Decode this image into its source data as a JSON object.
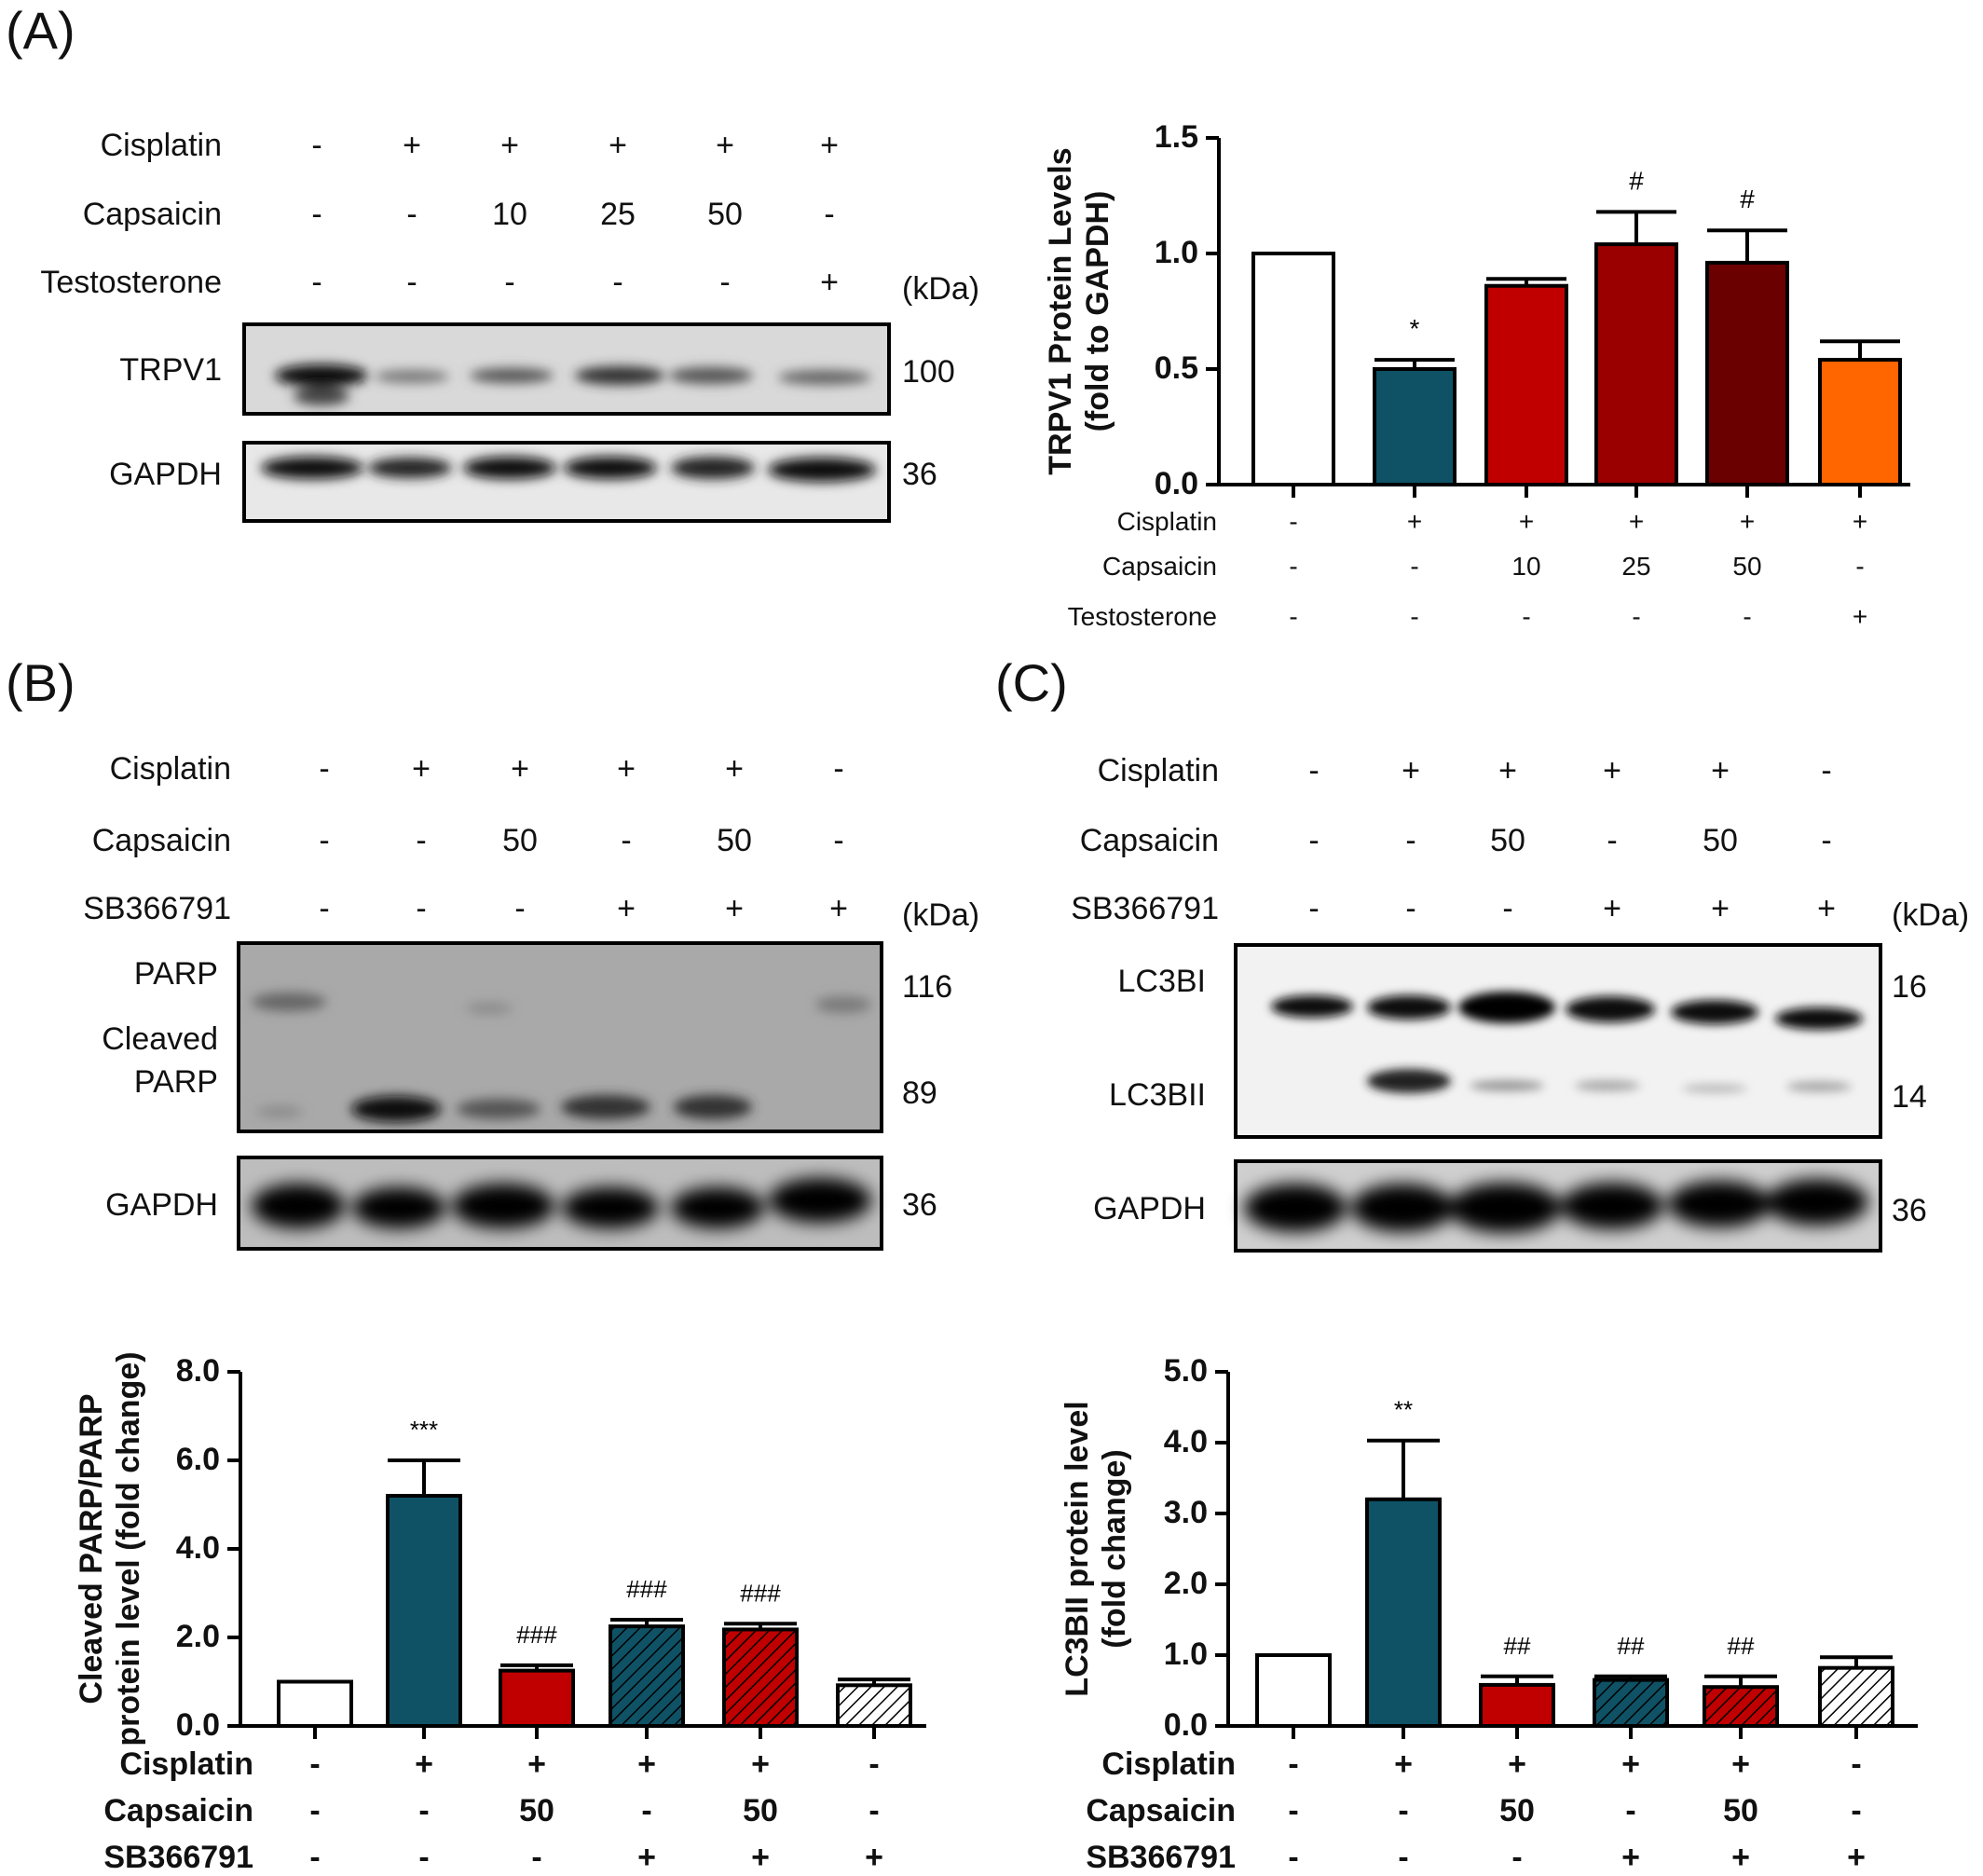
{
  "panels": {
    "a": {
      "label": "(A)",
      "row_names": [
        "Cisplatin",
        "Capsaicin",
        "Testosterone"
      ],
      "rows": [
        [
          "-",
          "+",
          "+",
          "+",
          "+",
          "+"
        ],
        [
          "-",
          "-",
          "10",
          "25",
          "50",
          "-"
        ],
        [
          "-",
          "-",
          "-",
          "-",
          "-",
          "+"
        ]
      ],
      "kda": "(kDa)",
      "blots": [
        {
          "name": "TRPV1",
          "kda": "100"
        },
        {
          "name": "GAPDH",
          "kda": "36"
        }
      ]
    },
    "b": {
      "label": "(B)",
      "row_names": [
        "Cisplatin",
        "Capsaicin",
        "SB366791"
      ],
      "rows": [
        [
          "-",
          "+",
          "+",
          "+",
          "+",
          "-"
        ],
        [
          "-",
          "-",
          "50",
          "-",
          "50",
          "-"
        ],
        [
          "-",
          "-",
          "-",
          "+",
          "+",
          "+"
        ]
      ],
      "kda": "(kDa)",
      "blot_labels": {
        "parp": "PARP",
        "cleaved": "Cleaved",
        "cleaved2": "PARP",
        "gapdh": "GAPDH"
      },
      "kda_values": {
        "parp": "116",
        "cleaved": "89",
        "gapdh": "36"
      }
    },
    "c": {
      "label": "(C)",
      "row_names": [
        "Cisplatin",
        "Capsaicin",
        "SB366791"
      ],
      "rows": [
        [
          "-",
          "+",
          "+",
          "+",
          "+",
          "-"
        ],
        [
          "-",
          "-",
          "50",
          "-",
          "50",
          "-"
        ],
        [
          "-",
          "-",
          "-",
          "+",
          "+",
          "+"
        ]
      ],
      "kda": "(kDa)",
      "blot_labels": {
        "lc3bi": "LC3BI",
        "lc3bii": "LC3BII",
        "gapdh": "GAPDH"
      },
      "kda_values": {
        "lc3bi": "16",
        "lc3bii": "14",
        "gapdh": "36"
      }
    }
  },
  "chart_data": [
    {
      "type": "bar",
      "panel": "A",
      "ylabel": "TRPV1 Protein Levels (fold to GAPDH)",
      "ylabel_lines": [
        "TRPV1 Protein Levels",
        "(fold to GAPDH)"
      ],
      "ylim": [
        0,
        1.5
      ],
      "yticks": [
        "0.0",
        "0.5",
        "1.0",
        "1.5"
      ],
      "values": [
        1.0,
        0.5,
        0.86,
        1.04,
        0.96,
        0.54
      ],
      "errors": [
        0,
        0.04,
        0.03,
        0.14,
        0.14,
        0.08
      ],
      "annotations": [
        "",
        "*",
        "",
        "#",
        "#",
        ""
      ],
      "colors": [
        "#ffffff",
        "#0f5266",
        "#c00000",
        "#9b0000",
        "#6b0000",
        "#ff6600"
      ],
      "hatched": [
        false,
        false,
        false,
        false,
        false,
        false
      ],
      "row_names": [
        "Cisplatin",
        "Capsaicin",
        "Testosterone"
      ],
      "rows": [
        [
          "-",
          "+",
          "+",
          "+",
          "+",
          "+"
        ],
        [
          "-",
          "-",
          "10",
          "25",
          "50",
          "-"
        ],
        [
          "-",
          "-",
          "-",
          "-",
          "-",
          "+"
        ]
      ]
    },
    {
      "type": "bar",
      "panel": "B",
      "ylabel": "Cleaved PARP/PARP protein level (fold change)",
      "ylabel_lines": [
        "Cleaved PARP/PARP",
        "protein level (fold change)"
      ],
      "ylim": [
        0,
        8.0
      ],
      "yticks": [
        "0.0",
        "2.0",
        "4.0",
        "6.0",
        "8.0"
      ],
      "values": [
        1.0,
        5.2,
        1.25,
        2.25,
        2.18,
        0.92
      ],
      "errors": [
        0,
        0.8,
        0.12,
        0.15,
        0.13,
        0.13
      ],
      "annotations": [
        "",
        "***",
        "###",
        "###",
        "###",
        ""
      ],
      "colors": [
        "#ffffff",
        "#0f5266",
        "#c00000",
        "#0f5266",
        "#c00000",
        "#ffffff"
      ],
      "hatched": [
        false,
        false,
        false,
        true,
        true,
        true
      ],
      "row_names": [
        "Cisplatin",
        "Capsaicin",
        "SB366791"
      ],
      "rows": [
        [
          "-",
          "+",
          "+",
          "+",
          "+",
          "-"
        ],
        [
          "-",
          "-",
          "50",
          "-",
          "50",
          "-"
        ],
        [
          "-",
          "-",
          "-",
          "+",
          "+",
          "+"
        ]
      ]
    },
    {
      "type": "bar",
      "panel": "C",
      "ylabel": "LC3BII protein level (fold change)",
      "ylabel_lines": [
        "LC3BII protein level",
        "(fold change)"
      ],
      "ylim": [
        0,
        5.0
      ],
      "yticks": [
        "0.0",
        "1.0",
        "2.0",
        "3.0",
        "4.0",
        "5.0"
      ],
      "values": [
        1.0,
        3.2,
        0.58,
        0.65,
        0.55,
        0.82
      ],
      "errors": [
        0,
        0.83,
        0.12,
        0.05,
        0.15,
        0.15
      ],
      "annotations": [
        "",
        "**",
        "##",
        "##",
        "##",
        ""
      ],
      "colors": [
        "#ffffff",
        "#0f5266",
        "#c00000",
        "#0f5266",
        "#c00000",
        "#ffffff"
      ],
      "hatched": [
        false,
        false,
        false,
        true,
        true,
        true
      ],
      "row_names": [
        "Cisplatin",
        "Capsaicin",
        "SB366791"
      ],
      "rows": [
        [
          "-",
          "+",
          "+",
          "+",
          "+",
          "-"
        ],
        [
          "-",
          "-",
          "50",
          "-",
          "50",
          "-"
        ],
        [
          "-",
          "-",
          "-",
          "+",
          "+",
          "+"
        ]
      ]
    }
  ]
}
